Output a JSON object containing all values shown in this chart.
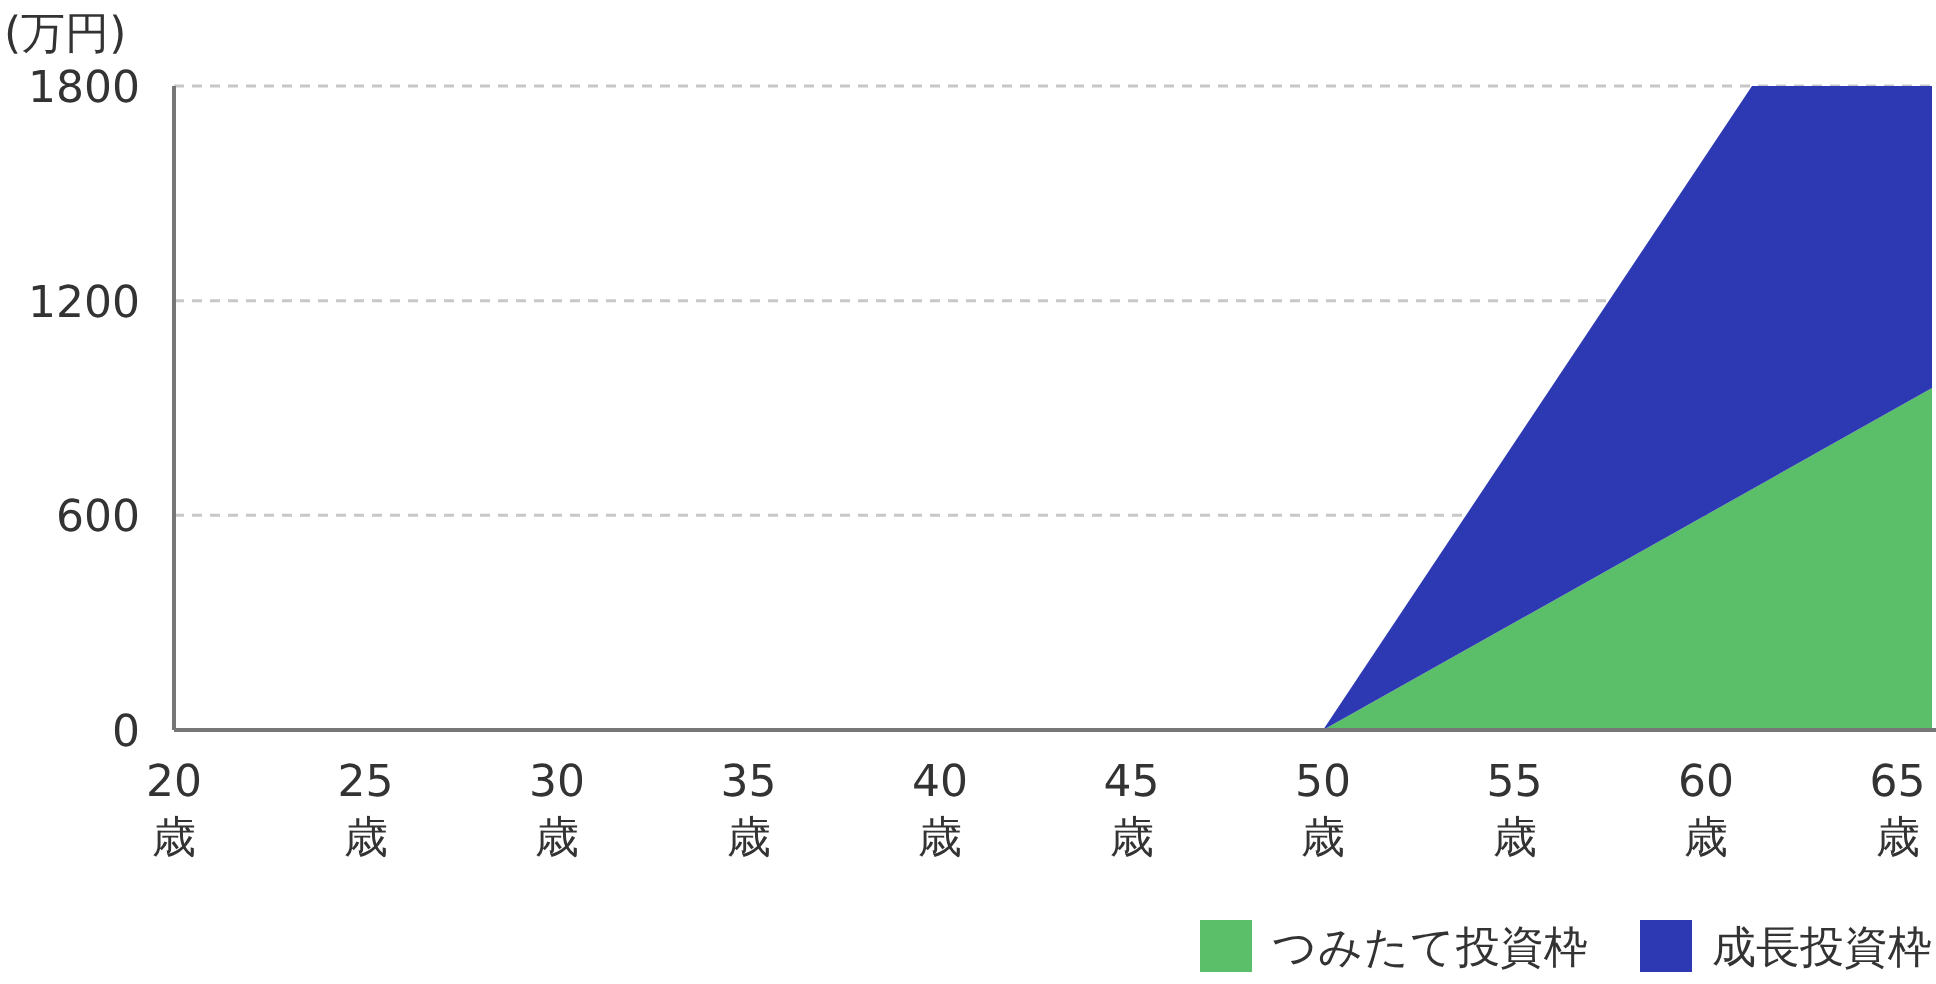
{
  "chart_data": {
    "type": "area",
    "stacked": true,
    "ylabel": "(万円)",
    "x": [
      50,
      61.2,
      65.9
    ],
    "series": [
      {
        "name": "つみたて投資枠",
        "color": "#5bbf6a",
        "values": [
          0,
          673,
          956
        ]
      },
      {
        "name": "成長投資枠",
        "color": "#2d38b3",
        "values": [
          0,
          1127,
          844
        ]
      }
    ],
    "xlim": [
      20,
      65.9
    ],
    "xticks": [
      {
        "value": 20,
        "label": "20\n歳"
      },
      {
        "value": 25,
        "label": "25\n歳"
      },
      {
        "value": 30,
        "label": "30\n歳"
      },
      {
        "value": 35,
        "label": "35\n歳"
      },
      {
        "value": 40,
        "label": "40\n歳"
      },
      {
        "value": 45,
        "label": "45\n歳"
      },
      {
        "value": 50,
        "label": "50\n歳"
      },
      {
        "value": 55,
        "label": "55\n歳"
      },
      {
        "value": 60,
        "label": "60\n歳"
      },
      {
        "value": 65,
        "label": "65\n歳"
      }
    ],
    "ylim": [
      0,
      1800
    ],
    "yticks": [
      0,
      600,
      1200,
      1800
    ],
    "grid": "y",
    "legend": "bottom right"
  }
}
